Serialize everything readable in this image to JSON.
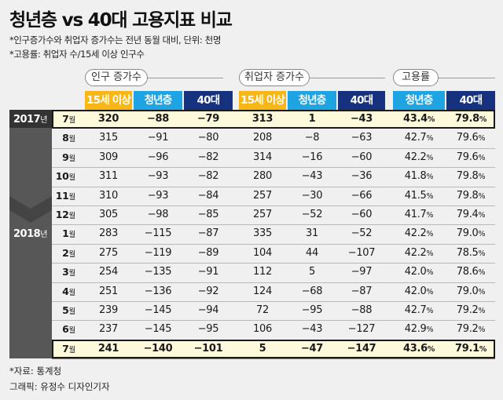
{
  "title": "청년층 vs 40대 고용지표 비교",
  "notes": [
    "*인구증가수와 취업자 증가수는 전년 동월 대비, 단위: 천명",
    "*고용률: 취업자 수/15세 이상 인구수"
  ],
  "groups": [
    "인구 증가수",
    "취업자 증가수",
    "고용률"
  ],
  "headers": [
    "15세 이상",
    "청년층",
    "40대",
    "15세 이상",
    "청년층",
    "40대",
    "청년층",
    "40대"
  ],
  "years": [
    {
      "year": "2017",
      "suffix": "년"
    },
    {
      "year": "2018",
      "suffix": "년"
    }
  ],
  "month_suffix": "월",
  "pct_suffix": "%",
  "chart_data": {
    "type": "table",
    "title": "청년층 vs 40대 고용지표 비교",
    "columns": [
      "월",
      "인구 증가수 15세 이상",
      "인구 증가수 청년층",
      "인구 증가수 40대",
      "취업자 증가수 15세 이상",
      "취업자 증가수 청년층",
      "취업자 증가수 40대",
      "고용률 청년층",
      "고용률 40대"
    ],
    "rows": [
      {
        "year": "2017",
        "month": "7",
        "values": [
          "320",
          "−88",
          "−79",
          "313",
          "1",
          "−43",
          "43.4",
          "79.8"
        ],
        "highlight": true
      },
      {
        "year": "2017",
        "month": "8",
        "values": [
          "315",
          "−91",
          "−80",
          "208",
          "−8",
          "−63",
          "42.7",
          "79.6"
        ]
      },
      {
        "year": "2017",
        "month": "9",
        "values": [
          "309",
          "−96",
          "−82",
          "314",
          "−16",
          "−60",
          "42.2",
          "79.6"
        ]
      },
      {
        "year": "2017",
        "month": "10",
        "values": [
          "311",
          "−93",
          "−82",
          "280",
          "−43",
          "−36",
          "41.8",
          "79.8"
        ]
      },
      {
        "year": "2017",
        "month": "11",
        "values": [
          "310",
          "−93",
          "−84",
          "257",
          "−30",
          "−66",
          "41.5",
          "79.8"
        ]
      },
      {
        "year": "2017",
        "month": "12",
        "values": [
          "305",
          "−98",
          "−85",
          "257",
          "−52",
          "−60",
          "41.7",
          "79.4"
        ]
      },
      {
        "year": "2018",
        "month": "1",
        "values": [
          "283",
          "−115",
          "−87",
          "335",
          "31",
          "−52",
          "42.2",
          "79.0"
        ]
      },
      {
        "year": "2018",
        "month": "2",
        "values": [
          "275",
          "−119",
          "−89",
          "104",
          "44",
          "−107",
          "42.2",
          "78.5"
        ]
      },
      {
        "year": "2018",
        "month": "3",
        "values": [
          "254",
          "−135",
          "−91",
          "112",
          "5",
          "−97",
          "42.0",
          "78.6"
        ]
      },
      {
        "year": "2018",
        "month": "4",
        "values": [
          "251",
          "−136",
          "−92",
          "124",
          "−68",
          "−87",
          "42.0",
          "79.0"
        ]
      },
      {
        "year": "2018",
        "month": "5",
        "values": [
          "239",
          "−145",
          "−94",
          "72",
          "−95",
          "−88",
          "42.7",
          "79.2"
        ]
      },
      {
        "year": "2018",
        "month": "6",
        "values": [
          "237",
          "−145",
          "−95",
          "106",
          "−43",
          "−127",
          "42.9",
          "79.2"
        ]
      },
      {
        "year": "2018",
        "month": "7",
        "values": [
          "241",
          "−140",
          "−101",
          "5",
          "−47",
          "−147",
          "43.6",
          "79.1"
        ],
        "highlight": true
      }
    ]
  },
  "source": "*자료: 통계청",
  "credit": "그래픽: 유정수 디자인기자",
  "colors": {
    "yellow": "#f9b715",
    "blue": "#1ea3e3",
    "navy": "#16327f",
    "highlight": "#fdf9db"
  }
}
